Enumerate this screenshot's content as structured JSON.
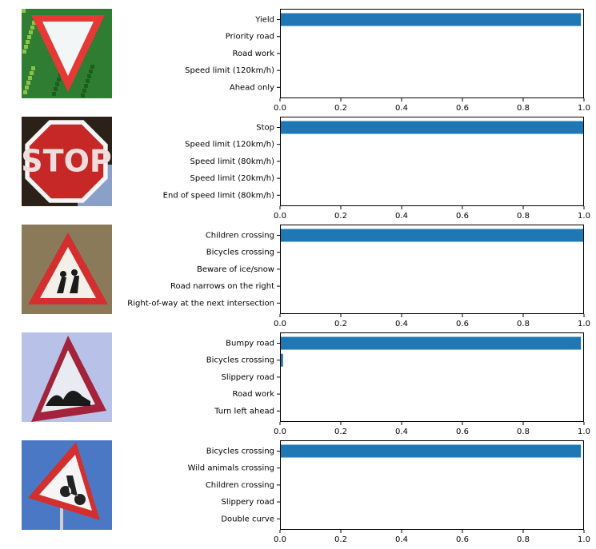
{
  "figure": {
    "bar_color": "#1f77b4",
    "axis_color": "#000000"
  },
  "chart_data": [
    {
      "type": "bar",
      "orientation": "horizontal",
      "image": {
        "icon": "yield-sign-icon",
        "colors": [
          "#e53935",
          "#f2f6f7",
          "#2e7d32"
        ]
      },
      "categories": [
        "Yield",
        "Priority road",
        "Road work",
        "Speed limit (120km/h)",
        "Ahead only"
      ],
      "values": [
        0.99,
        0.0,
        0.0,
        0.0,
        0.0
      ],
      "xlim": [
        0,
        1
      ],
      "xticks": [
        "0.0",
        "0.2",
        "0.4",
        "0.6",
        "0.8",
        "1.0"
      ]
    },
    {
      "type": "bar",
      "orientation": "horizontal",
      "image": {
        "icon": "stop-sign-icon",
        "colors": [
          "#c62828",
          "#f5f5f5",
          "#2b2118"
        ]
      },
      "categories": [
        "Stop",
        "Speed limit (120km/h)",
        "Speed limit (80km/h)",
        "Speed limit (20km/h)",
        "End of speed limit (80km/h)"
      ],
      "values": [
        1.0,
        0.0,
        0.0,
        0.0,
        0.0
      ],
      "xlim": [
        0,
        1
      ],
      "xticks": [
        "0.0",
        "0.2",
        "0.4",
        "0.6",
        "0.8",
        "1.0"
      ]
    },
    {
      "type": "bar",
      "orientation": "horizontal",
      "image": {
        "icon": "children-crossing-sign-icon",
        "colors": [
          "#d32f2f",
          "#f3f0ea",
          "#8a7a5a"
        ]
      },
      "categories": [
        "Children crossing",
        "Bicycles crossing",
        "Beware of ice/snow",
        "Road narrows on the right",
        "Right-of-way at the next intersection"
      ],
      "values": [
        1.0,
        0.0,
        0.0,
        0.0,
        0.0
      ],
      "xlim": [
        0,
        1
      ],
      "xticks": [
        "0.0",
        "0.2",
        "0.4",
        "0.6",
        "0.8",
        "1.0"
      ]
    },
    {
      "type": "bar",
      "orientation": "horizontal",
      "image": {
        "icon": "bumpy-road-sign-icon",
        "colors": [
          "#a3233a",
          "#e9ebf2",
          "#b8c2e8"
        ]
      },
      "categories": [
        "Bumpy road",
        "Bicycles crossing",
        "Slippery road",
        "Road work",
        "Turn left ahead"
      ],
      "values": [
        0.99,
        0.01,
        0.0,
        0.0,
        0.0
      ],
      "xlim": [
        0,
        1
      ],
      "xticks": [
        "0.0",
        "0.2",
        "0.4",
        "0.6",
        "0.8",
        "1.0"
      ]
    },
    {
      "type": "bar",
      "orientation": "horizontal",
      "image": {
        "icon": "bicycles-crossing-sign-icon",
        "colors": [
          "#d32f2f",
          "#f5f5f5",
          "#4a78c4"
        ]
      },
      "categories": [
        "Bicycles crossing",
        "Wild animals crossing",
        "Children crossing",
        "Slippery road",
        "Double curve"
      ],
      "values": [
        0.99,
        0.0,
        0.0,
        0.0,
        0.0
      ],
      "xlim": [
        0,
        1
      ],
      "xticks": [
        "0.0",
        "0.2",
        "0.4",
        "0.6",
        "0.8",
        "1.0"
      ]
    }
  ]
}
